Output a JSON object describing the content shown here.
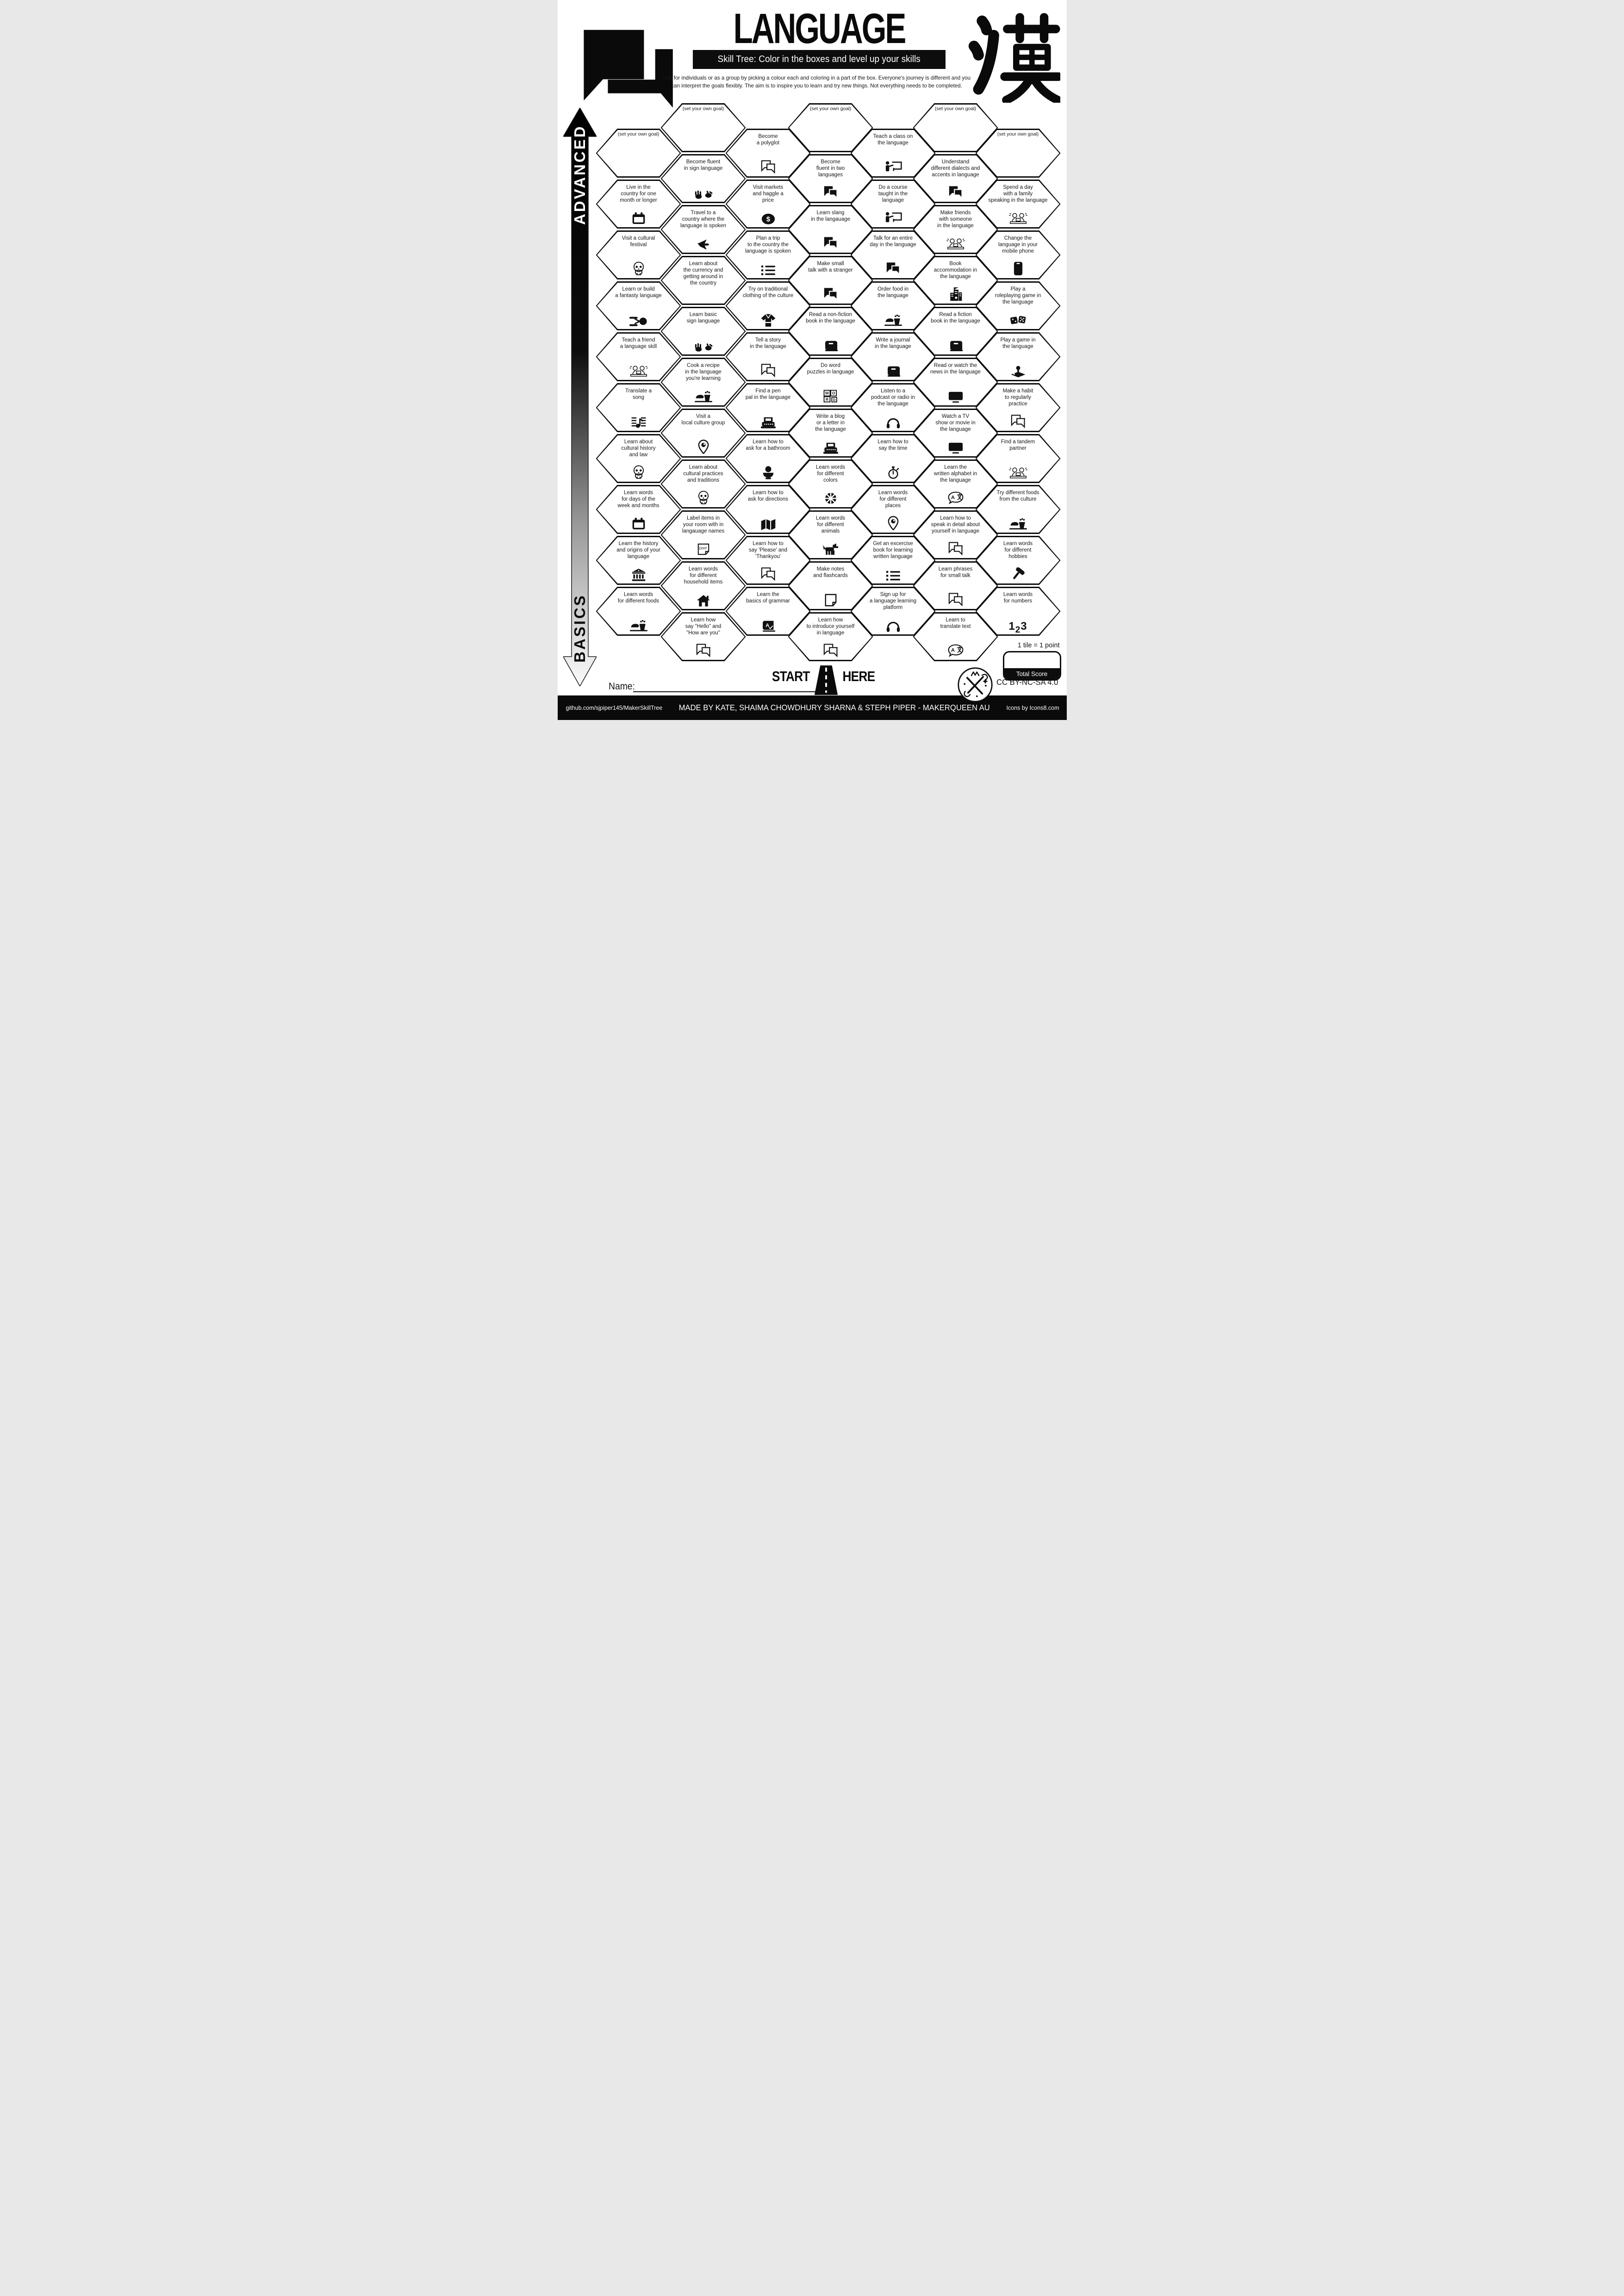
{
  "header": {
    "title": "LANGUAGE",
    "subtitle": "Skill Tree:  Color in the boxes and level up your skills",
    "intro_line1": "Use for individuals or as a group by picking a colour each and coloring in a part of the box.  Everyone's journey is different and you can",
    "intro_line2": "interpret the goals flexibly.  The aim is to inspire you to learn and try new things. Not everything needs to be completed.",
    "kanji": "漢"
  },
  "axis": {
    "top": "ADVANCED",
    "bottom": "BASICS"
  },
  "start": {
    "left": "START",
    "right": "HERE"
  },
  "scoring": {
    "tile_note": "1 tile = 1 point",
    "total_label": "Total Score"
  },
  "name_label": "Name:",
  "license": "CC BY-NC-SA 4.0",
  "footer": {
    "left": "github.com/sjpiper145/MakerSkillTree",
    "center": "MADE BY KATE, SHAIMA CHOWDHURY SHARNA & STEPH PIPER  -  MAKERQUEEN AU",
    "right": "Icons by Icons8.com"
  },
  "hexes": [
    {
      "c": 1,
      "r": 0,
      "g": true,
      "t": [
        "(set your own goal)"
      ],
      "i": null
    },
    {
      "c": 1,
      "r": 1,
      "t": [
        "Live in the",
        "country for one",
        "month or longer"
      ],
      "i": "calendar"
    },
    {
      "c": 1,
      "r": 2,
      "t": [
        "Visit a cultural",
        "festival"
      ],
      "i": "skull"
    },
    {
      "c": 1,
      "r": 3,
      "t": [
        "Learn or build",
        "a fantasty language"
      ],
      "i": "starship"
    },
    {
      "c": 1,
      "r": 4,
      "t": [
        "Teach a friend",
        "a language skill"
      ],
      "i": "people"
    },
    {
      "c": 1,
      "r": 5,
      "t": [
        "Translate a",
        "song"
      ],
      "i": "music"
    },
    {
      "c": 1,
      "r": 6,
      "t": [
        "Learn about",
        "cultural history",
        "and law"
      ],
      "i": "skull"
    },
    {
      "c": 1,
      "r": 7,
      "t": [
        "Learn words",
        "for days of the",
        "week and months"
      ],
      "i": "calendar"
    },
    {
      "c": 1,
      "r": 8,
      "t": [
        "Learn the history",
        "and origins of your",
        "language"
      ],
      "i": "museum"
    },
    {
      "c": 1,
      "r": 9,
      "t": [
        "Learn words",
        "for different foods"
      ],
      "i": "food"
    },
    {
      "c": 2,
      "r": 0,
      "g": true,
      "t": [
        "(set your own goal)"
      ],
      "i": null
    },
    {
      "c": 2,
      "r": 1,
      "t": [
        "Become fluent",
        "in sign language"
      ],
      "i": "hands"
    },
    {
      "c": 2,
      "r": 2,
      "t": [
        "Travel to a",
        "country where the",
        "language is spoken"
      ],
      "i": "plane"
    },
    {
      "c": 2,
      "r": 3,
      "t": [
        "Learn about",
        "the currency and",
        "getting around in",
        "the country"
      ],
      "i": null
    },
    {
      "c": 2,
      "r": 4,
      "t": [
        "Learn basic",
        "sign language"
      ],
      "i": "hands"
    },
    {
      "c": 2,
      "r": 5,
      "t": [
        "Cook a recipe",
        "in the language",
        "you're learning"
      ],
      "i": "food"
    },
    {
      "c": 2,
      "r": 6,
      "t": [
        "Visit a",
        "local culture group"
      ],
      "i": "pin"
    },
    {
      "c": 2,
      "r": 7,
      "t": [
        "Learn about",
        "cultural practices",
        "and traditions"
      ],
      "i": "skull"
    },
    {
      "c": 2,
      "r": 8,
      "t": [
        "Label items in",
        "your room with in",
        "langauage names"
      ],
      "i": "door"
    },
    {
      "c": 2,
      "r": 9,
      "t": [
        "Learn words",
        "for different",
        "household items"
      ],
      "i": "house"
    },
    {
      "c": 2,
      "r": 10,
      "t": [
        "Learn how",
        "say \"Hello\" and",
        "\"How are you\""
      ],
      "i": "chat_outline"
    },
    {
      "c": 3,
      "r": 0,
      "t": [
        "Become",
        "a polyglot"
      ],
      "i": "chat_outline"
    },
    {
      "c": 3,
      "r": 1,
      "t": [
        "Visit markets",
        "and haggle a",
        "price"
      ],
      "i": "currency"
    },
    {
      "c": 3,
      "r": 2,
      "t": [
        "Plan a trip",
        "to the country the",
        "language is spoken"
      ],
      "i": "list"
    },
    {
      "c": 3,
      "r": 3,
      "t": [
        "Try on traditional",
        "clothing of the culture"
      ],
      "i": "kimono"
    },
    {
      "c": 3,
      "r": 4,
      "t": [
        "Tell a story",
        "in the language"
      ],
      "i": "chat_outline"
    },
    {
      "c": 3,
      "r": 5,
      "t": [
        "Find a pen",
        "pal in the language"
      ],
      "i": "typewriter"
    },
    {
      "c": 3,
      "r": 6,
      "t": [
        "Learn how to",
        "ask for a bathroom"
      ],
      "i": "toilet"
    },
    {
      "c": 3,
      "r": 7,
      "t": [
        "Learn how to",
        "ask for directions"
      ],
      "i": "map"
    },
    {
      "c": 3,
      "r": 8,
      "t": [
        "Learn how to",
        "say 'Please' and",
        "'Thankyou'"
      ],
      "i": "chat_outline"
    },
    {
      "c": 3,
      "r": 9,
      "t": [
        "Learn the",
        "basics of grammar"
      ],
      "i": "grammar"
    },
    {
      "c": 4,
      "r": 0,
      "g": true,
      "t": [
        "(set your own goal)"
      ],
      "i": null
    },
    {
      "c": 4,
      "r": 1,
      "t": [
        "Become",
        "fluent in two",
        "languages"
      ],
      "i": "chat"
    },
    {
      "c": 4,
      "r": 2,
      "t": [
        "Learn slang",
        "in the langauage"
      ],
      "i": "chat"
    },
    {
      "c": 4,
      "r": 3,
      "t": [
        "Make small",
        "talk with a stranger"
      ],
      "i": "chat"
    },
    {
      "c": 4,
      "r": 4,
      "t": [
        "Read a non-fiction",
        "book in the language"
      ],
      "i": "book"
    },
    {
      "c": 4,
      "r": 5,
      "t": [
        "Do word",
        "puzzles in language"
      ],
      "i": "word"
    },
    {
      "c": 4,
      "r": 6,
      "t": [
        "Write a blog",
        "or a letter in",
        "the language"
      ],
      "i": "typewriter"
    },
    {
      "c": 4,
      "r": 7,
      "t": [
        "Learn words",
        "for different",
        "colors"
      ],
      "i": "colorwheel"
    },
    {
      "c": 4,
      "r": 8,
      "t": [
        "Learn words",
        "for different",
        "animals"
      ],
      "i": "dog"
    },
    {
      "c": 4,
      "r": 9,
      "t": [
        "Make notes",
        "and flashcards"
      ],
      "i": "note"
    },
    {
      "c": 4,
      "r": 10,
      "t": [
        "Learn how",
        "to introduce yourself",
        "in language"
      ],
      "i": "chat_outline"
    },
    {
      "c": 5,
      "r": 0,
      "t": [
        "Teach a class on",
        "the language"
      ],
      "i": "teacher"
    },
    {
      "c": 5,
      "r": 1,
      "t": [
        "Do a course",
        "taught in the",
        "language"
      ],
      "i": "teacher"
    },
    {
      "c": 5,
      "r": 2,
      "t": [
        "Talk for an entire",
        "day in the language"
      ],
      "i": "chat"
    },
    {
      "c": 5,
      "r": 3,
      "t": [
        "Order food in",
        "the language"
      ],
      "i": "food"
    },
    {
      "c": 5,
      "r": 4,
      "t": [
        "Write a journal",
        "in the language"
      ],
      "i": "book"
    },
    {
      "c": 5,
      "r": 5,
      "t": [
        "Listen to a",
        "podcast or radio in",
        "the language"
      ],
      "i": "headphones"
    },
    {
      "c": 5,
      "r": 6,
      "t": [
        "Learn how to",
        "say the time"
      ],
      "i": "stopwatch"
    },
    {
      "c": 5,
      "r": 7,
      "t": [
        "Learn words",
        "for different",
        "places"
      ],
      "i": "pin"
    },
    {
      "c": 5,
      "r": 8,
      "t": [
        "Get an excercise",
        "book for learning",
        "written language"
      ],
      "i": "list"
    },
    {
      "c": 5,
      "r": 9,
      "t": [
        "Sign up for",
        "a language learning",
        "platform"
      ],
      "i": "headphones"
    },
    {
      "c": 6,
      "r": 0,
      "g": true,
      "t": [
        "(set your own goal)"
      ],
      "i": null
    },
    {
      "c": 6,
      "r": 1,
      "t": [
        "Understand",
        "different dialects and",
        "accents in language"
      ],
      "i": "chat"
    },
    {
      "c": 6,
      "r": 2,
      "t": [
        "Make friends",
        "with someone",
        "in the language"
      ],
      "i": "people"
    },
    {
      "c": 6,
      "r": 3,
      "t": [
        "Book",
        "accommodation in",
        "the language"
      ],
      "i": "building"
    },
    {
      "c": 6,
      "r": 4,
      "t": [
        "Read a fiction",
        "book in the language"
      ],
      "i": "book"
    },
    {
      "c": 6,
      "r": 5,
      "t": [
        "Read or watch the",
        "news in the language"
      ],
      "i": "tv"
    },
    {
      "c": 6,
      "r": 6,
      "t": [
        "Watch a TV",
        "show or movie in",
        "the language"
      ],
      "i": "tv"
    },
    {
      "c": 6,
      "r": 7,
      "t": [
        "Learn the",
        "written alphabet in",
        "the language"
      ],
      "i": "translate"
    },
    {
      "c": 6,
      "r": 8,
      "t": [
        "Learn how to",
        "speak in detail about",
        "yourself in language"
      ],
      "i": "chat_outline"
    },
    {
      "c": 6,
      "r": 9,
      "t": [
        "Learn phrases",
        "for small talk"
      ],
      "i": "chat_outline"
    },
    {
      "c": 6,
      "r": 10,
      "t": [
        "Learn to",
        "translate text"
      ],
      "i": "translate"
    },
    {
      "c": 7,
      "r": 0,
      "g": true,
      "t": [
        "(set your own goal)"
      ],
      "i": null
    },
    {
      "c": 7,
      "r": 1,
      "t": [
        "Spend a day",
        "with a family",
        "speaking in the language"
      ],
      "i": "people"
    },
    {
      "c": 7,
      "r": 2,
      "t": [
        "Change the",
        "language in your",
        "mobile phone"
      ],
      "i": "phone"
    },
    {
      "c": 7,
      "r": 3,
      "t": [
        "Play a",
        "roleplaying game in",
        "the language"
      ],
      "i": "dice"
    },
    {
      "c": 7,
      "r": 4,
      "t": [
        "Play a game in",
        "the language"
      ],
      "i": "joystick"
    },
    {
      "c": 7,
      "r": 5,
      "t": [
        "Make a habit",
        "to regularly",
        "practice"
      ],
      "i": "chat_outline"
    },
    {
      "c": 7,
      "r": 6,
      "t": [
        "Find a tandem",
        "partner"
      ],
      "i": "people"
    },
    {
      "c": 7,
      "r": 7,
      "t": [
        "Try different foods",
        "from the culture"
      ],
      "i": "food"
    },
    {
      "c": 7,
      "r": 8,
      "t": [
        "Learn words",
        "for different",
        "hobbies"
      ],
      "i": "hammer"
    },
    {
      "c": 7,
      "r": 9,
      "t": [
        "Learn words",
        "for numbers"
      ],
      "i": "numbers"
    }
  ]
}
